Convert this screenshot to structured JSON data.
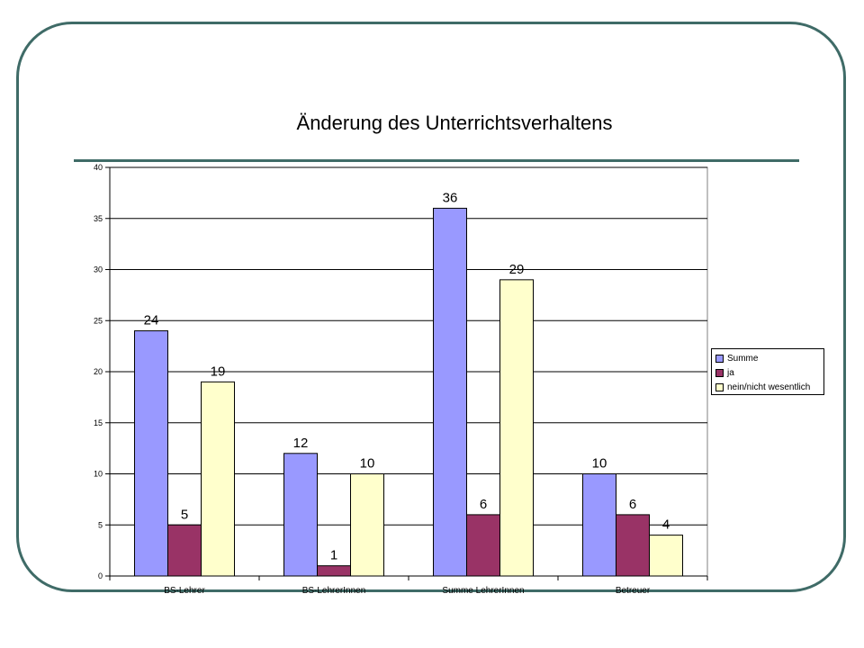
{
  "chart_data": {
    "type": "bar",
    "title": "Änderung des Unterrichtsverhaltens",
    "xlabel": "",
    "ylabel": "",
    "categories": [
      "BS-Lehrer",
      "BS-LehrerInnen",
      "Summe LehrerInnen",
      "Betreuer"
    ],
    "series": [
      {
        "name": "Summe",
        "values": [
          24,
          12,
          36,
          10
        ],
        "color": "#9999ff"
      },
      {
        "name": "ja",
        "values": [
          5,
          1,
          6,
          6
        ],
        "color": "#993366"
      },
      {
        "name": "nein/nicht wesentlich",
        "values": [
          19,
          10,
          29,
          4
        ],
        "color": "#ffffcc"
      }
    ],
    "ylim": [
      0,
      40
    ],
    "yticks": [
      0,
      5,
      10,
      15,
      20,
      25,
      30,
      35,
      40
    ],
    "grid": true,
    "legend_position": "right"
  },
  "frame_color": "#3f6b67"
}
